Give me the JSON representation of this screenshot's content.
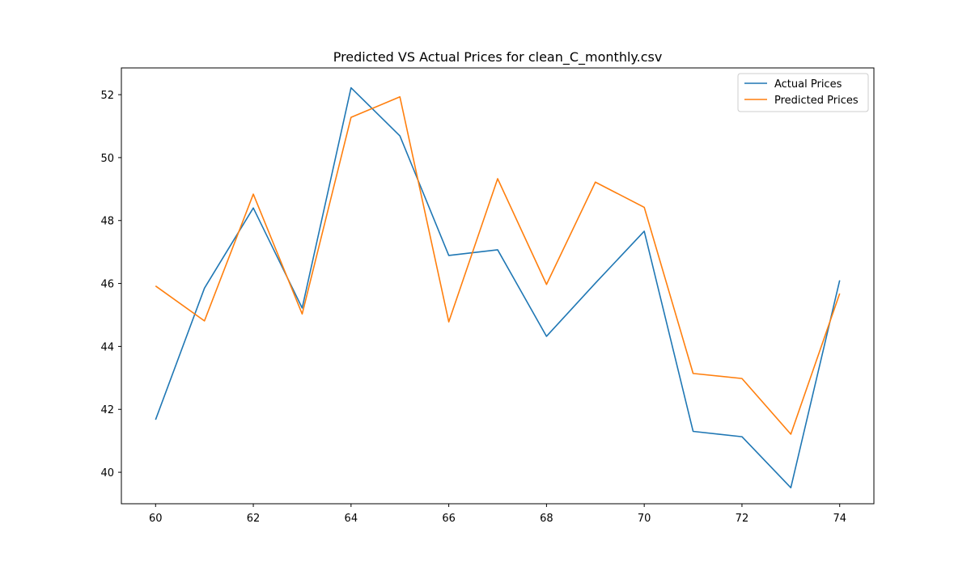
{
  "chart_data": {
    "type": "line",
    "title": "Predicted VS Actual Prices for clean_C_monthly.csv",
    "xlabel": "",
    "ylabel": "",
    "xlim": [
      59.3,
      74.7
    ],
    "ylim": [
      39.0,
      52.85
    ],
    "x_ticks": [
      60,
      62,
      64,
      66,
      68,
      70,
      72,
      74
    ],
    "y_ticks": [
      40,
      42,
      44,
      46,
      48,
      50,
      52
    ],
    "x": [
      60,
      61,
      62,
      63,
      64,
      65,
      66,
      67,
      68,
      69,
      70,
      71,
      72,
      73,
      74
    ],
    "series": [
      {
        "name": "Actual Prices",
        "color": "#1f77b4",
        "values": [
          41.67,
          45.85,
          48.4,
          45.22,
          52.22,
          50.69,
          46.89,
          47.07,
          44.32,
          46.01,
          47.66,
          41.3,
          41.13,
          39.51,
          46.1
        ]
      },
      {
        "name": "Predicted Prices",
        "color": "#ff7f0e",
        "values": [
          45.92,
          44.81,
          48.84,
          45.03,
          51.28,
          51.93,
          44.78,
          49.33,
          45.97,
          49.22,
          48.42,
          43.14,
          42.98,
          41.21,
          45.68
        ]
      }
    ],
    "legend_position": "top-right",
    "grid": false
  }
}
